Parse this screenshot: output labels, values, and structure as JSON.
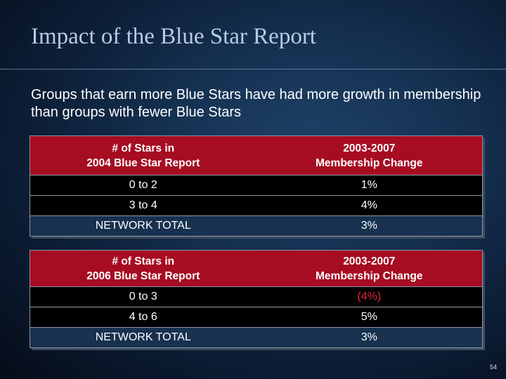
{
  "slide": {
    "title": "Impact of the Blue Star Report",
    "subtitle": "Groups that earn more Blue Stars have had more growth in membership than groups with fewer Blue Stars",
    "page_number": "54"
  },
  "table1": {
    "header": {
      "col1_line1": "# of Stars in",
      "col1_line2": "2004 Blue Star Report",
      "col2_line1": "2003-2007",
      "col2_line2": "Membership Change"
    },
    "rows": [
      {
        "range": "0 to 2",
        "change": "1%"
      },
      {
        "range": "3 to 4",
        "change": "4%"
      },
      {
        "range": "NETWORK TOTAL",
        "change": "3%"
      }
    ]
  },
  "table2": {
    "header": {
      "col1_line1": "# of Stars in",
      "col1_line2": "2006 Blue Star Report",
      "col2_line1": "2003-2007",
      "col2_line2": "Membership Change"
    },
    "rows": [
      {
        "range": "0 to 3",
        "change": "(4%)"
      },
      {
        "range": "4 to 6",
        "change": "5%"
      },
      {
        "range": "NETWORK TOTAL",
        "change": "3%"
      }
    ],
    "negative_color": "#e8233a"
  },
  "colors": {
    "header_bg": "#a60c22",
    "title_color": "#b9cbe4"
  }
}
